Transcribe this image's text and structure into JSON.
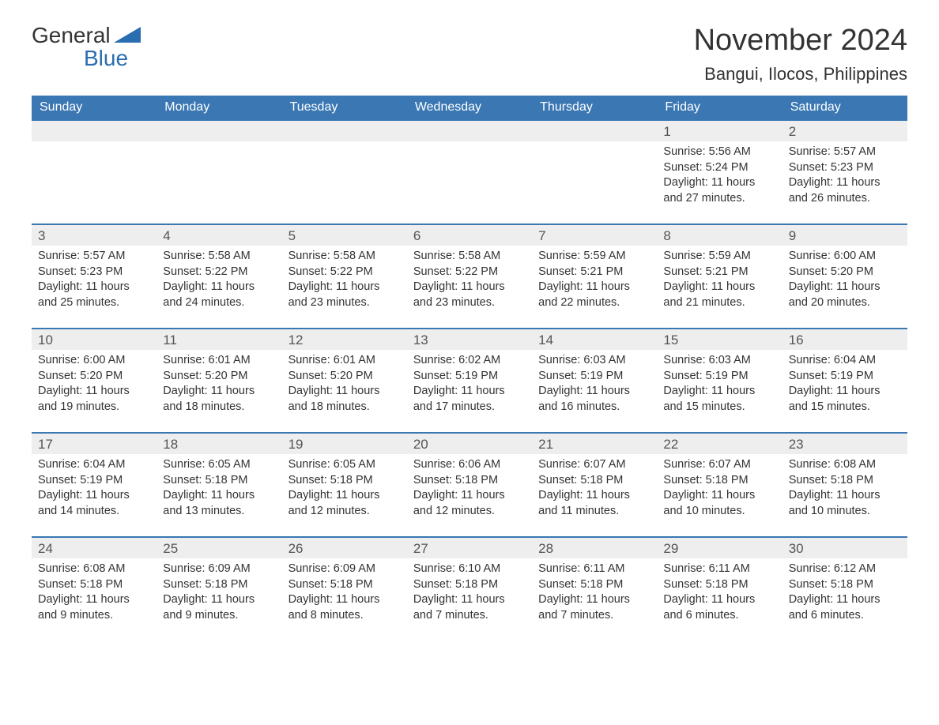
{
  "logo": {
    "word1": "General",
    "word2": "Blue"
  },
  "title": "November 2024",
  "location": "Bangui, Ilocos, Philippines",
  "colors": {
    "header_bg": "#3a77b3",
    "header_text": "#ffffff",
    "week_border": "#3a77b3",
    "daynum_bg": "#eeeeee",
    "logo_blue": "#2a6db0",
    "body_text": "#333333"
  },
  "dow": [
    "Sunday",
    "Monday",
    "Tuesday",
    "Wednesday",
    "Thursday",
    "Friday",
    "Saturday"
  ],
  "weeks": [
    [
      null,
      null,
      null,
      null,
      null,
      {
        "n": "1",
        "sunrise": "5:56 AM",
        "sunset": "5:24 PM",
        "dl1": "11 hours",
        "dl2": "and 27 minutes."
      },
      {
        "n": "2",
        "sunrise": "5:57 AM",
        "sunset": "5:23 PM",
        "dl1": "11 hours",
        "dl2": "and 26 minutes."
      }
    ],
    [
      {
        "n": "3",
        "sunrise": "5:57 AM",
        "sunset": "5:23 PM",
        "dl1": "11 hours",
        "dl2": "and 25 minutes."
      },
      {
        "n": "4",
        "sunrise": "5:58 AM",
        "sunset": "5:22 PM",
        "dl1": "11 hours",
        "dl2": "and 24 minutes."
      },
      {
        "n": "5",
        "sunrise": "5:58 AM",
        "sunset": "5:22 PM",
        "dl1": "11 hours",
        "dl2": "and 23 minutes."
      },
      {
        "n": "6",
        "sunrise": "5:58 AM",
        "sunset": "5:22 PM",
        "dl1": "11 hours",
        "dl2": "and 23 minutes."
      },
      {
        "n": "7",
        "sunrise": "5:59 AM",
        "sunset": "5:21 PM",
        "dl1": "11 hours",
        "dl2": "and 22 minutes."
      },
      {
        "n": "8",
        "sunrise": "5:59 AM",
        "sunset": "5:21 PM",
        "dl1": "11 hours",
        "dl2": "and 21 minutes."
      },
      {
        "n": "9",
        "sunrise": "6:00 AM",
        "sunset": "5:20 PM",
        "dl1": "11 hours",
        "dl2": "and 20 minutes."
      }
    ],
    [
      {
        "n": "10",
        "sunrise": "6:00 AM",
        "sunset": "5:20 PM",
        "dl1": "11 hours",
        "dl2": "and 19 minutes."
      },
      {
        "n": "11",
        "sunrise": "6:01 AM",
        "sunset": "5:20 PM",
        "dl1": "11 hours",
        "dl2": "and 18 minutes."
      },
      {
        "n": "12",
        "sunrise": "6:01 AM",
        "sunset": "5:20 PM",
        "dl1": "11 hours",
        "dl2": "and 18 minutes."
      },
      {
        "n": "13",
        "sunrise": "6:02 AM",
        "sunset": "5:19 PM",
        "dl1": "11 hours",
        "dl2": "and 17 minutes."
      },
      {
        "n": "14",
        "sunrise": "6:03 AM",
        "sunset": "5:19 PM",
        "dl1": "11 hours",
        "dl2": "and 16 minutes."
      },
      {
        "n": "15",
        "sunrise": "6:03 AM",
        "sunset": "5:19 PM",
        "dl1": "11 hours",
        "dl2": "and 15 minutes."
      },
      {
        "n": "16",
        "sunrise": "6:04 AM",
        "sunset": "5:19 PM",
        "dl1": "11 hours",
        "dl2": "and 15 minutes."
      }
    ],
    [
      {
        "n": "17",
        "sunrise": "6:04 AM",
        "sunset": "5:19 PM",
        "dl1": "11 hours",
        "dl2": "and 14 minutes."
      },
      {
        "n": "18",
        "sunrise": "6:05 AM",
        "sunset": "5:18 PM",
        "dl1": "11 hours",
        "dl2": "and 13 minutes."
      },
      {
        "n": "19",
        "sunrise": "6:05 AM",
        "sunset": "5:18 PM",
        "dl1": "11 hours",
        "dl2": "and 12 minutes."
      },
      {
        "n": "20",
        "sunrise": "6:06 AM",
        "sunset": "5:18 PM",
        "dl1": "11 hours",
        "dl2": "and 12 minutes."
      },
      {
        "n": "21",
        "sunrise": "6:07 AM",
        "sunset": "5:18 PM",
        "dl1": "11 hours",
        "dl2": "and 11 minutes."
      },
      {
        "n": "22",
        "sunrise": "6:07 AM",
        "sunset": "5:18 PM",
        "dl1": "11 hours",
        "dl2": "and 10 minutes."
      },
      {
        "n": "23",
        "sunrise": "6:08 AM",
        "sunset": "5:18 PM",
        "dl1": "11 hours",
        "dl2": "and 10 minutes."
      }
    ],
    [
      {
        "n": "24",
        "sunrise": "6:08 AM",
        "sunset": "5:18 PM",
        "dl1": "11 hours",
        "dl2": "and 9 minutes."
      },
      {
        "n": "25",
        "sunrise": "6:09 AM",
        "sunset": "5:18 PM",
        "dl1": "11 hours",
        "dl2": "and 9 minutes."
      },
      {
        "n": "26",
        "sunrise": "6:09 AM",
        "sunset": "5:18 PM",
        "dl1": "11 hours",
        "dl2": "and 8 minutes."
      },
      {
        "n": "27",
        "sunrise": "6:10 AM",
        "sunset": "5:18 PM",
        "dl1": "11 hours",
        "dl2": "and 7 minutes."
      },
      {
        "n": "28",
        "sunrise": "6:11 AM",
        "sunset": "5:18 PM",
        "dl1": "11 hours",
        "dl2": "and 7 minutes."
      },
      {
        "n": "29",
        "sunrise": "6:11 AM",
        "sunset": "5:18 PM",
        "dl1": "11 hours",
        "dl2": "and 6 minutes."
      },
      {
        "n": "30",
        "sunrise": "6:12 AM",
        "sunset": "5:18 PM",
        "dl1": "11 hours",
        "dl2": "and 6 minutes."
      }
    ]
  ],
  "labels": {
    "sunrise": "Sunrise: ",
    "sunset": "Sunset: ",
    "daylight": "Daylight: "
  }
}
